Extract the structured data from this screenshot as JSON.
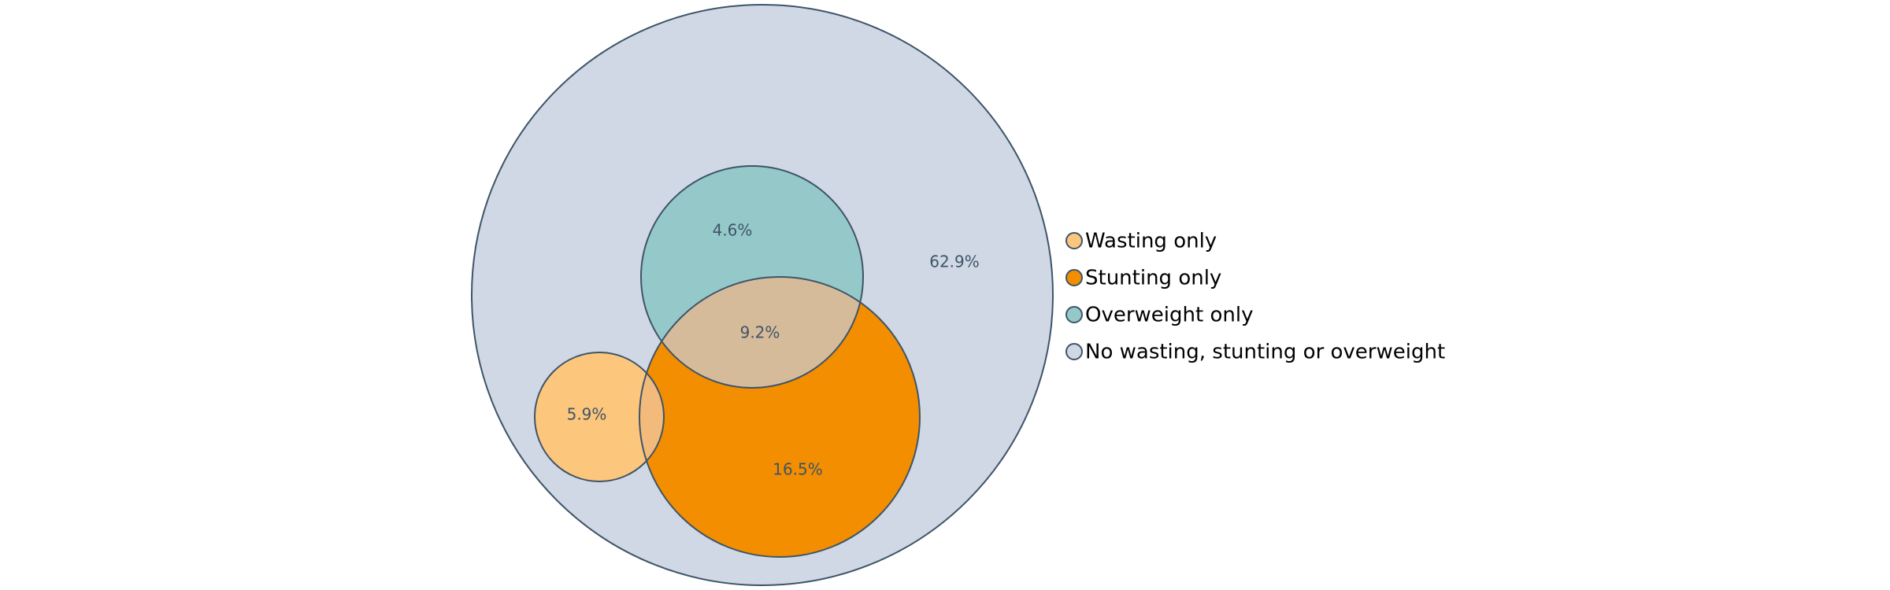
{
  "chart_data": {
    "type": "venn",
    "title": "",
    "sets": [
      {
        "name": "Wasting only",
        "color": "#fcc77c"
      },
      {
        "name": "Stunting only",
        "color": "#f28e00"
      },
      {
        "name": "Overweight only",
        "color": "#95c9c9"
      },
      {
        "name": "No wasting, stunting or overweight",
        "color": "#cfd8e4"
      }
    ],
    "regions": [
      {
        "label": "4.6%",
        "value": 4.6,
        "set": "Overweight only"
      },
      {
        "label": "9.2%",
        "value": 9.2,
        "set": "Stunting and overweight"
      },
      {
        "label": "5.9%",
        "value": 5.9,
        "set": "Wasting only"
      },
      {
        "label": "16.5%",
        "value": 16.5,
        "set": "Stunting only"
      },
      {
        "label": "62.9%",
        "value": 62.9,
        "set": "No wasting, stunting or overweight"
      }
    ],
    "legend_placement": "right",
    "colors": {
      "outline": "#3f5468",
      "label_text": "#3f5468",
      "legend_text": "#000000",
      "wasting_stunting_overlap": "#f3bb7b",
      "stunting_overweight_overlap": "#d5bb9a"
    }
  }
}
